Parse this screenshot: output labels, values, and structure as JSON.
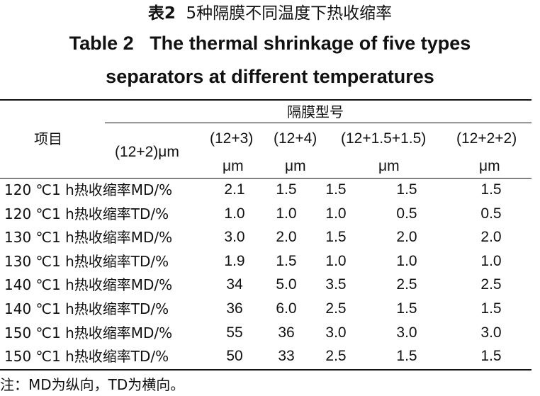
{
  "title_cn_label": "表2",
  "title_cn_text": "5种隔膜不同温度下热收缩率",
  "title_en_line1": "Table 2   The thermal shrinkage of five types",
  "title_en_line2": "separators at different temperatures",
  "header": {
    "item": "项目",
    "group": "隔膜型号",
    "types": [
      {
        "line1": "(12+2)μm",
        "line2": ""
      },
      {
        "line1": "(12+3)",
        "line2": "μm"
      },
      {
        "line1": "(12+4)",
        "line2": "μm"
      },
      {
        "line1": "(12+1.5+1.5)",
        "line2": "μm"
      },
      {
        "line1": "(12+2+2)",
        "line2": "μm"
      }
    ]
  },
  "rows": [
    {
      "label": "120 ℃1 h热收缩率MD/%",
      "values": [
        "2.1",
        "1.5",
        "1.5",
        "1.5",
        "1.5"
      ]
    },
    {
      "label": "120 ℃1 h热收缩率TD/%",
      "values": [
        "1.0",
        "1.0",
        "1.0",
        "0.5",
        "0.5"
      ]
    },
    {
      "label": "130 ℃1 h热收缩率MD/%",
      "values": [
        "3.0",
        "2.0",
        "1.5",
        "2.0",
        "2.0"
      ]
    },
    {
      "label": "130 ℃1 h热收缩率TD/%",
      "values": [
        "1.9",
        "1.5",
        "1.0",
        "1.0",
        "1.0"
      ]
    },
    {
      "label": "140 ℃1 h热收缩率MD/%",
      "values": [
        "34",
        "5.0",
        "3.5",
        "2.5",
        "2.5"
      ]
    },
    {
      "label": "140 ℃1 h热收缩率TD/%",
      "values": [
        "36",
        "6.0",
        "2.5",
        "1.5",
        "1.5"
      ]
    },
    {
      "label": "150 ℃1 h热收缩率MD/%",
      "values": [
        "55",
        "36",
        "3.0",
        "3.0",
        "3.0"
      ]
    },
    {
      "label": "150 ℃1 h热收缩率TD/%",
      "values": [
        "50",
        "33",
        "2.5",
        "1.5",
        "1.5"
      ]
    }
  ],
  "note": "注：MD为纵向，TD为横向。"
}
